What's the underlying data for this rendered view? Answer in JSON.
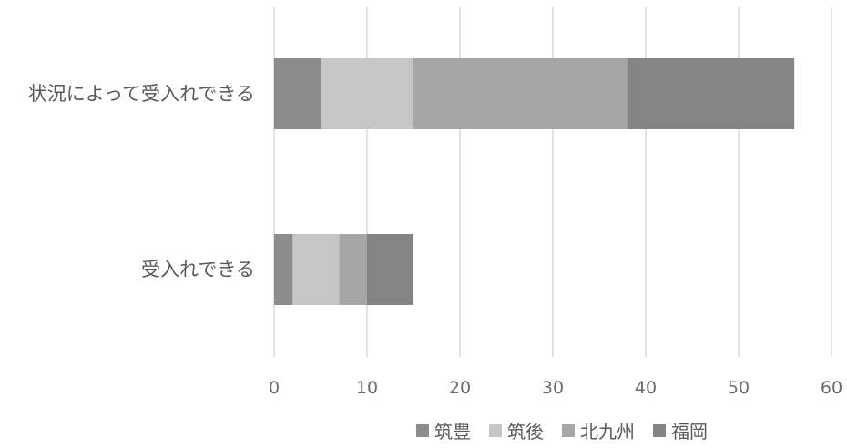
{
  "chart_data": {
    "type": "bar",
    "orientation": "horizontal",
    "stacked": true,
    "categories": [
      "状況によって受入れできる",
      "受入れできる"
    ],
    "series": [
      {
        "name": "筑豊",
        "values": [
          5,
          2
        ],
        "color": "#8c8c8c"
      },
      {
        "name": "筑後",
        "values": [
          10,
          5
        ],
        "color": "#c6c6c6"
      },
      {
        "name": "北九州",
        "values": [
          23,
          3
        ],
        "color": "#a6a6a6"
      },
      {
        "name": "福岡",
        "values": [
          18,
          5
        ],
        "color": "#848484"
      }
    ],
    "xlim": [
      0,
      60
    ],
    "xticks": [
      "0",
      "10",
      "20",
      "30",
      "40",
      "50",
      "60"
    ],
    "grid": true,
    "legend": "bottom"
  }
}
